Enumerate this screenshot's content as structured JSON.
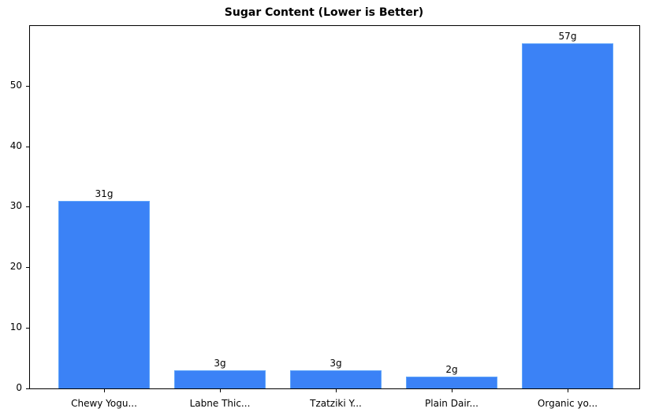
{
  "chart_data": {
    "type": "bar",
    "title": "Sugar Content (Lower is Better)",
    "categories": [
      "Chewy Yogu...",
      "Labne Thic...",
      "Tzatziki Y...",
      "Plain Dair...",
      "Organic yo..."
    ],
    "values": [
      31,
      3,
      3,
      2,
      57
    ],
    "data_labels": [
      "31g",
      "3g",
      "3g",
      "2g",
      "57g"
    ],
    "xlabel": "",
    "ylabel": "",
    "ylim": [
      0,
      60
    ],
    "yticks": [
      0,
      10,
      20,
      30,
      40,
      50
    ],
    "grid": false,
    "legend": null,
    "bar_color": "#3b82f6"
  }
}
